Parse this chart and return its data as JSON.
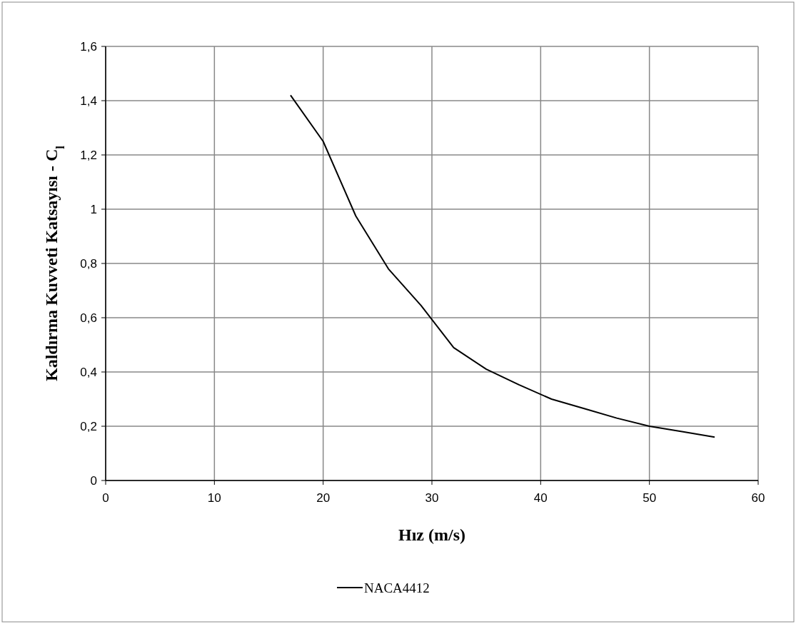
{
  "chart_data": {
    "type": "line",
    "xlabel": "Hız (m/s)",
    "ylabel": "Kaldırma Kuvveti Katsayısı - C$_{l}$",
    "x": [
      17,
      20,
      23,
      26,
      29,
      32,
      35,
      38,
      41,
      44,
      47,
      50,
      53,
      56
    ],
    "series": [
      {
        "name": "NACA4412",
        "color": "#000000",
        "values": [
          1.42,
          1.25,
          0.975,
          0.78,
          0.645,
          0.49,
          0.41,
          0.353,
          0.3,
          0.265,
          0.23,
          0.2,
          0.18,
          0.16
        ]
      }
    ],
    "xlim": [
      0,
      60
    ],
    "xticks": [
      0,
      10,
      20,
      30,
      40,
      50,
      60
    ],
    "ylim": [
      0,
      1.6
    ],
    "yticks": [
      {
        "value": 0,
        "label": "0"
      },
      {
        "value": 0.2,
        "label": "0,2"
      },
      {
        "value": 0.4,
        "label": "0,4"
      },
      {
        "value": 0.6,
        "label": "0,6"
      },
      {
        "value": 0.8,
        "label": "0,8"
      },
      {
        "value": 1,
        "label": "1"
      },
      {
        "value": 1.2,
        "label": "1,2"
      },
      {
        "value": 1.4,
        "label": "1,4"
      },
      {
        "value": 1.6,
        "label": "1,6"
      }
    ],
    "grid": true,
    "legend": "bottom",
    "marker": "none",
    "line_style": "solid"
  }
}
